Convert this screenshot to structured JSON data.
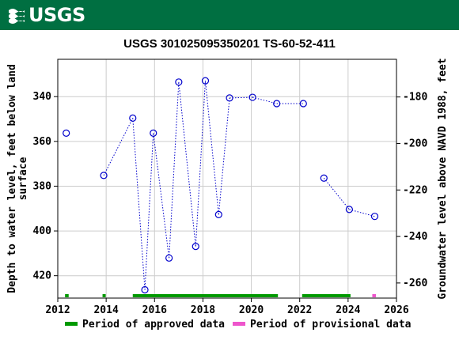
{
  "header": {
    "logo_text": "USGS",
    "logo_icon": "usgs-wave-icon",
    "bar_color": "#006f41"
  },
  "chart_data": {
    "type": "scatter",
    "title": "USGS 301025095350201 TS-60-52-411",
    "xlabel": "",
    "ylabel_left": "Depth to water level, feet below land surface",
    "ylabel_left_lines": [
      "Depth to water level, feet below land",
      "surface"
    ],
    "ylabel_right": "Groundwater level above NAVD 1988, feet",
    "xlim": [
      2012,
      2026
    ],
    "ylim_left": [
      430,
      323.33
    ],
    "ylim_right": [
      -266.5,
      -163.8
    ],
    "x_ticks": [
      "2012",
      "2014",
      "2016",
      "2018",
      "2020",
      "2022",
      "2024",
      "2026"
    ],
    "x_tick_values": [
      2012,
      2014,
      2016,
      2018,
      2020,
      2022,
      2024,
      2026
    ],
    "y_left_ticks": [
      "340",
      "360",
      "380",
      "400",
      "420"
    ],
    "y_left_tick_values": [
      340,
      360,
      380,
      400,
      420
    ],
    "y_right_ticks": [
      "-180",
      "-200",
      "-220",
      "-240",
      "-260"
    ],
    "y_right_tick_values": [
      -180,
      -200,
      -220,
      -240,
      -260
    ],
    "grid": true,
    "marker_color": "#0000cc",
    "series": [
      {
        "name": "",
        "x": [
          2012.35,
          2013.9,
          2015.1,
          2015.6,
          2015.95,
          2016.6,
          2017.0,
          2017.7,
          2018.1,
          2018.65,
          2019.1,
          2020.05,
          2021.05,
          2022.15,
          2023.0,
          2024.05,
          2025.1
        ],
        "y": [
          356.3,
          375.2,
          349.6,
          426.3,
          356.3,
          412.1,
          333.5,
          406.9,
          332.9,
          392.7,
          340.6,
          340.3,
          343.1,
          343.1,
          376.4,
          390.4,
          393.5
        ],
        "connected_groups": [
          [
            1,
            13
          ],
          [
            14,
            16
          ]
        ]
      }
    ],
    "periods": [
      {
        "type": "approved",
        "start": 2012.3,
        "end": 2012.45
      },
      {
        "type": "approved",
        "start": 2013.85,
        "end": 2013.98
      },
      {
        "type": "approved",
        "start": 2015.1,
        "end": 2021.1
      },
      {
        "type": "approved",
        "start": 2022.1,
        "end": 2024.1
      },
      {
        "type": "provisional",
        "start": 2025.0,
        "end": 2025.15
      }
    ],
    "legend": {
      "placement": "bottom",
      "items": [
        {
          "label": "Period of approved data",
          "color": "#009900"
        },
        {
          "label": "Period of provisional data",
          "color": "#ee55cc"
        }
      ]
    }
  }
}
